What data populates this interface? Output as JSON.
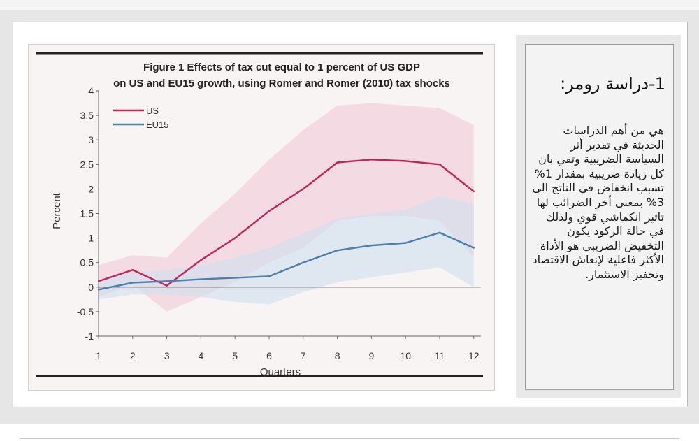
{
  "chart_data": {
    "type": "line",
    "title_line1": "Figure 1 Effects of tax cut equal to 1 percent of US GDP",
    "title_line2": "on US and EU15 growth, using Romer and Romer (2010) tax shocks",
    "xlabel": "Quarters",
    "ylabel": "Percent",
    "x": [
      1,
      2,
      3,
      4,
      5,
      6,
      7,
      8,
      9,
      10,
      11,
      12
    ],
    "ylim": [
      -1,
      4
    ],
    "yticks": [
      4,
      3.5,
      3,
      2.5,
      2,
      1.5,
      1,
      0.5,
      0,
      -0.5,
      -1
    ],
    "ytick_labels": [
      "4",
      "3.5",
      "3",
      "2.5",
      "2",
      "1.5",
      "1",
      "0.5",
      "0",
      "-0.5",
      "-1"
    ],
    "xtick_labels": [
      "1",
      "2",
      "3",
      "4",
      "5",
      "6",
      "7",
      "8",
      "9",
      "10",
      "11",
      "12"
    ],
    "series": [
      {
        "name": "US",
        "color": "#c2245a",
        "values": [
          0.12,
          0.35,
          0.03,
          0.55,
          1.0,
          1.55,
          2.0,
          2.54,
          2.6,
          2.57,
          2.5,
          1.95
        ],
        "band_upper": [
          0.45,
          0.65,
          0.6,
          1.3,
          1.9,
          2.6,
          3.2,
          3.7,
          3.75,
          3.7,
          3.65,
          3.3
        ],
        "band_lower": [
          -0.2,
          0.05,
          -0.5,
          -0.2,
          0.1,
          0.5,
          0.8,
          1.35,
          1.45,
          1.45,
          1.35,
          0.6
        ],
        "band_color": "#f2c9d8"
      },
      {
        "name": "EU15",
        "color": "#4a7fae",
        "values": [
          -0.05,
          0.09,
          0.12,
          0.16,
          0.19,
          0.22,
          0.5,
          0.75,
          0.85,
          0.9,
          1.11,
          0.8
        ],
        "band_upper": [
          0.15,
          0.3,
          0.35,
          0.45,
          0.6,
          0.8,
          1.1,
          1.4,
          1.5,
          1.58,
          1.85,
          1.7
        ],
        "band_lower": [
          -0.25,
          -0.15,
          -0.15,
          -0.2,
          -0.3,
          -0.35,
          -0.1,
          0.1,
          0.2,
          0.3,
          0.4,
          0.0
        ],
        "band_color": "#cfe0ee"
      }
    ],
    "legend": [
      "US",
      "EU15"
    ],
    "legend_position": "top-left"
  },
  "article": {
    "heading": "1-دراسة رومر:",
    "body": "هي من أهم الدراسات الحديثة في تقدير أثر السياسة الضريبية وتفي بان كل زيادة ضريبية بمقدار 1% تسبب انخفاض في الناتج الى 3% بمعنى أخر الضرائب لها تاثير انكماشي قوي ولذلك في حالة الركود يكون التخفيض الضريبي هو الأداة الأكثر فاعلية لإنعاش الاقتصاد وتحفيز الاستثمار."
  }
}
